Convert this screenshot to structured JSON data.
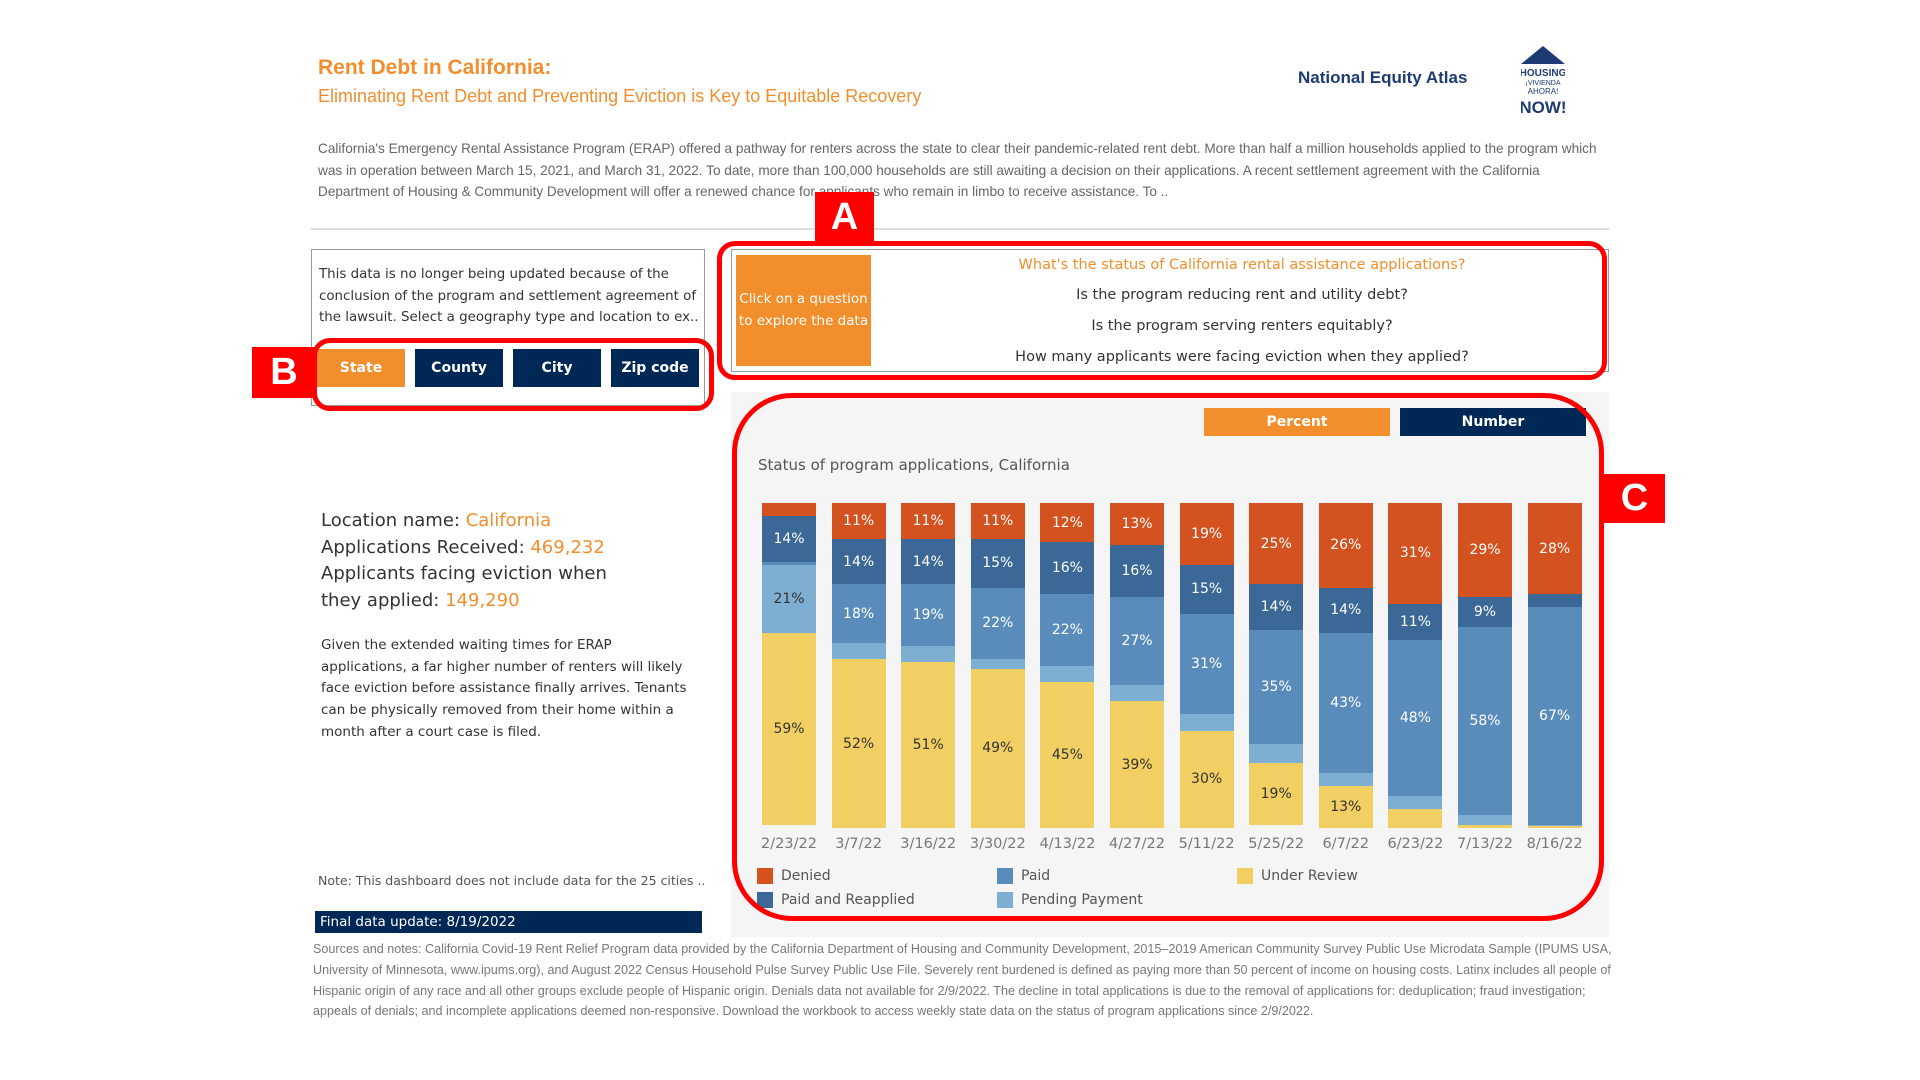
{
  "header": {
    "title": "Rent Debt in California:",
    "subtitle": "Eliminating Rent Debt and Preventing Eviction is Key to Equitable Recovery",
    "intro": "California's Emergency Rental Assistance Program (ERAP) offered a pathway for renters across the state to clear their pandemic-related rent debt. More than half a million households applied to the program which was in operation between March 15, 2021, and March 31, 2022. To date, more than 100,000 households are still awaiting a decision on their applications. A recent settlement agreement with the California Department of Housing & Community Development will offer a renewed chance for applicants who remain in limbo to receive assistance. To ..",
    "logos": {
      "nea": "National Equity Atlas",
      "housing_now": "HOUSING ¡VIVIENDA AHORA! NOW!"
    }
  },
  "annotations": {
    "a": "A",
    "b": "B",
    "c": "C"
  },
  "geo": {
    "text": "This data is no longer being updated because of the conclusion of the program and settlement agreement of the lawsuit. Select a geography type and location to ex..",
    "buttons": [
      {
        "label": "State",
        "active": true
      },
      {
        "label": "County",
        "active": false
      },
      {
        "label": "City",
        "active": false
      },
      {
        "label": "Zip code",
        "active": false
      }
    ]
  },
  "questions": {
    "hint": "Click on a question to explore the data",
    "items": [
      "What's the status of California rental assistance applications?",
      "Is the program reducing rent and utility debt?",
      "Is the program serving renters equitably?",
      "How many applicants were facing eviction when they applied?"
    ]
  },
  "location": {
    "name_label": "Location name: ",
    "name": "California",
    "received_label": "Applications Received: ",
    "received": "469,232",
    "eviction_label": "Applicants facing eviction when they applied: ",
    "eviction": "149,290",
    "paragraph": "Given the extended waiting times for ERAP applications, a far higher number of renters will likely face eviction before assistance finally arrives. Tenants can be physically removed from their home within a month after a court case is filed."
  },
  "note": "Note: This dashboard does not include data for the 25 cities ..",
  "final_update": "Final data update: 8/19/2022",
  "sources": "Sources and notes: California Covid-19 Rent Relief Program data provided by the California Department of Housing and Community Development, 2015–2019 American Community Survey Public Use Microdata Sample (IPUMS USA, University of Minnesota, www.ipums.org), and August 2022 Census Household Pulse Survey Public Use File. Severely rent burdened is defined as paying more than 50 percent of income on housing costs. Latinx includes all people of Hispanic origin of any race and all other groups exclude people of Hispanic origin. Denials data not available for 2/9/2022. The decline in total applications is due to the removal of applications for: deduplication; fraud investigation; appeals of denials; and incomplete applications deemed non-responsive. Download the workbook to access weekly state data on the status of program applications since 2/9/2022.",
  "mode": {
    "percent": "Percent",
    "number": "Number",
    "colors": {
      "percent": "#f28e2b",
      "number": "#002856"
    }
  },
  "chart_data": {
    "type": "bar",
    "stacked": true,
    "title": "Status of program applications, California",
    "unit": "%",
    "ylim": [
      0,
      100
    ],
    "categories": [
      "2/23/22",
      "3/7/22",
      "3/16/22",
      "3/30/22",
      "4/13/22",
      "4/27/22",
      "5/11/22",
      "5/25/22",
      "6/7/22",
      "6/23/22",
      "7/13/22",
      "8/16/22"
    ],
    "series": [
      {
        "name": "Denied",
        "color": "#d35220",
        "values": [
          4,
          11,
          11,
          11,
          12,
          13,
          19,
          25,
          26,
          31,
          29,
          28
        ]
      },
      {
        "name": "Paid and Reapplied",
        "color": "#3b6896",
        "values": [
          14,
          14,
          14,
          15,
          16,
          16,
          15,
          14,
          14,
          11,
          9,
          4
        ]
      },
      {
        "name": "Paid",
        "color": "#5a8cbb",
        "values": [
          1,
          18,
          19,
          22,
          22,
          27,
          31,
          35,
          43,
          48,
          58,
          67
        ]
      },
      {
        "name": "Pending Payment",
        "color": "#7eaed2",
        "values": [
          21,
          5,
          5,
          3,
          5,
          5,
          5,
          6,
          4,
          4,
          3,
          0.5
        ]
      },
      {
        "name": "Under Review",
        "color": "#f2cf63",
        "values": [
          59,
          52,
          51,
          49,
          45,
          39,
          30,
          19,
          13,
          6,
          1,
          0.5
        ]
      }
    ],
    "legend_order": [
      "Denied",
      "Paid",
      "Under Review",
      "Paid and Reapplied",
      "Pending Payment"
    ],
    "legend": "bottom",
    "grid": false
  }
}
